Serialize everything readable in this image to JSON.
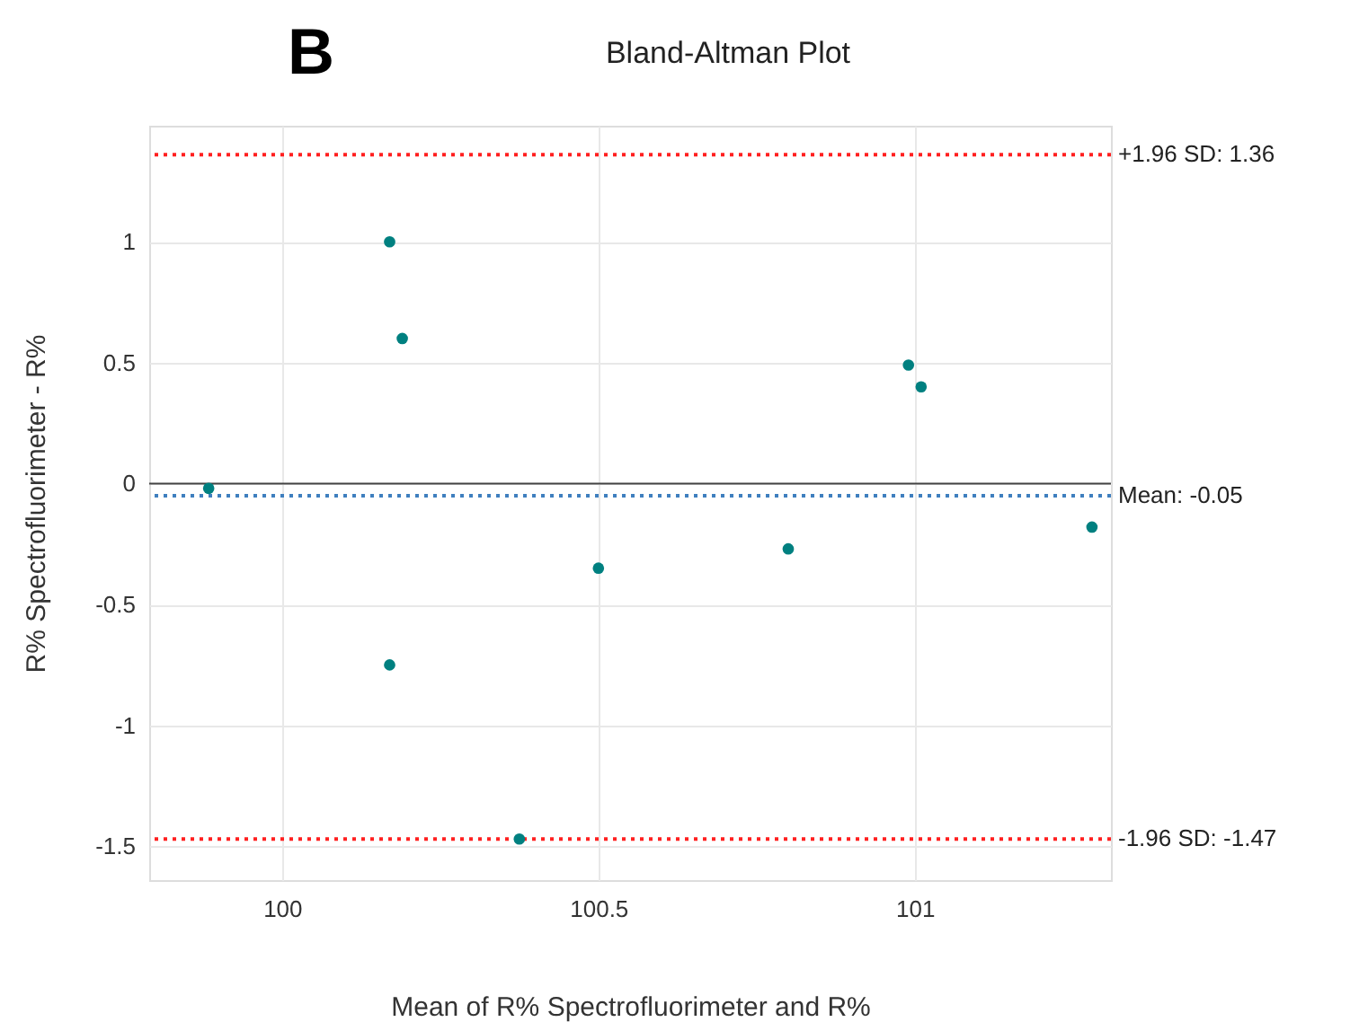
{
  "chart_data": {
    "type": "scatter",
    "title": "Bland-Altman Plot",
    "xlabel": "Mean of R% Spectrofluorimeter and R%",
    "ylabel": "R% Spectrofluorimeter - R%",
    "x": [
      99.884,
      100.17,
      100.19,
      100.17,
      100.375,
      100.5,
      100.8,
      100.99,
      101.01,
      101.28
    ],
    "series": [
      {
        "color": "#008080",
        "values": [
          -0.02,
          1.0,
          0.6,
          -0.75,
          -1.47,
          -0.35,
          -0.27,
          0.49,
          0.4,
          -0.18
        ]
      }
    ],
    "xlim": [
      99.79,
      101.31
    ],
    "ylim": [
      -1.64,
      1.48
    ],
    "xticks": [
      100,
      100.5,
      101
    ],
    "yticks": [
      -1.5,
      -1,
      -0.5,
      0,
      0.5,
      1
    ],
    "ref_lines": [
      {
        "axis": "y",
        "value": 1.36,
        "label": "+1.96 SD: 1.36",
        "color": "#ff2020",
        "line_style": "dotted"
      },
      {
        "axis": "y",
        "value": -0.05,
        "label": "Mean: -0.05",
        "color": "#3f7fbf",
        "line_style": "dotted"
      },
      {
        "axis": "y",
        "value": -1.47,
        "label": "-1.96 SD: -1.47",
        "color": "#ff2020",
        "line_style": "dotted"
      },
      {
        "axis": "y",
        "value": 0,
        "label": null,
        "color": "#444444",
        "line_style": "solid"
      }
    ],
    "annotations": [
      "B"
    ],
    "grid": true,
    "marker": "circle"
  }
}
